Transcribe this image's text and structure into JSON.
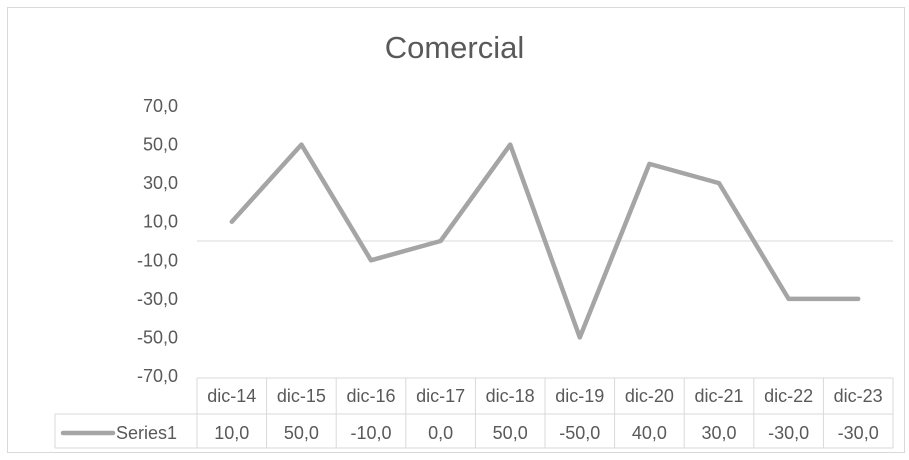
{
  "chart_data": {
    "type": "line",
    "title": "Comercial",
    "categories": [
      "dic-14",
      "dic-15",
      "dic-16",
      "dic-17",
      "dic-18",
      "dic-19",
      "dic-20",
      "dic-21",
      "dic-22",
      "dic-23"
    ],
    "series": [
      {
        "name": "Series1",
        "values": [
          10,
          50,
          -10,
          0,
          50,
          -50,
          40,
          30,
          -30,
          -30
        ],
        "color": "#a5a5a5"
      }
    ],
    "value_labels": [
      "10,0",
      "50,0",
      "-10,0",
      "0,0",
      "50,0",
      "-50,0",
      "40,0",
      "30,0",
      "-30,0",
      "-30,0"
    ],
    "ylim": [
      -70,
      70
    ],
    "yticks": [
      70,
      50,
      30,
      10,
      -10,
      -30,
      -50,
      -70
    ],
    "ytick_labels": [
      "70,0",
      "50,0",
      "30,0",
      "10,0",
      "-10,0",
      "-30,0",
      "-50,0",
      "-70,0"
    ],
    "grid": false,
    "legend": "data-table",
    "data_table": true,
    "axis_color": "#d9d9d9"
  }
}
